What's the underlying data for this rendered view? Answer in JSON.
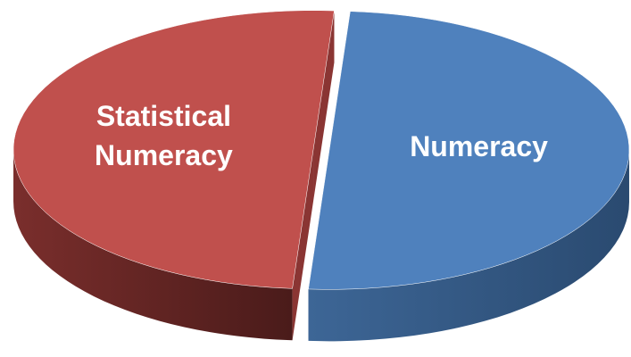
{
  "chart_data": {
    "type": "pie",
    "categories": [
      "Numeracy",
      "Statistical Numeracy"
    ],
    "values": [
      50,
      50
    ],
    "colors": [
      "#4f81bd",
      "#c0504d"
    ]
  }
}
